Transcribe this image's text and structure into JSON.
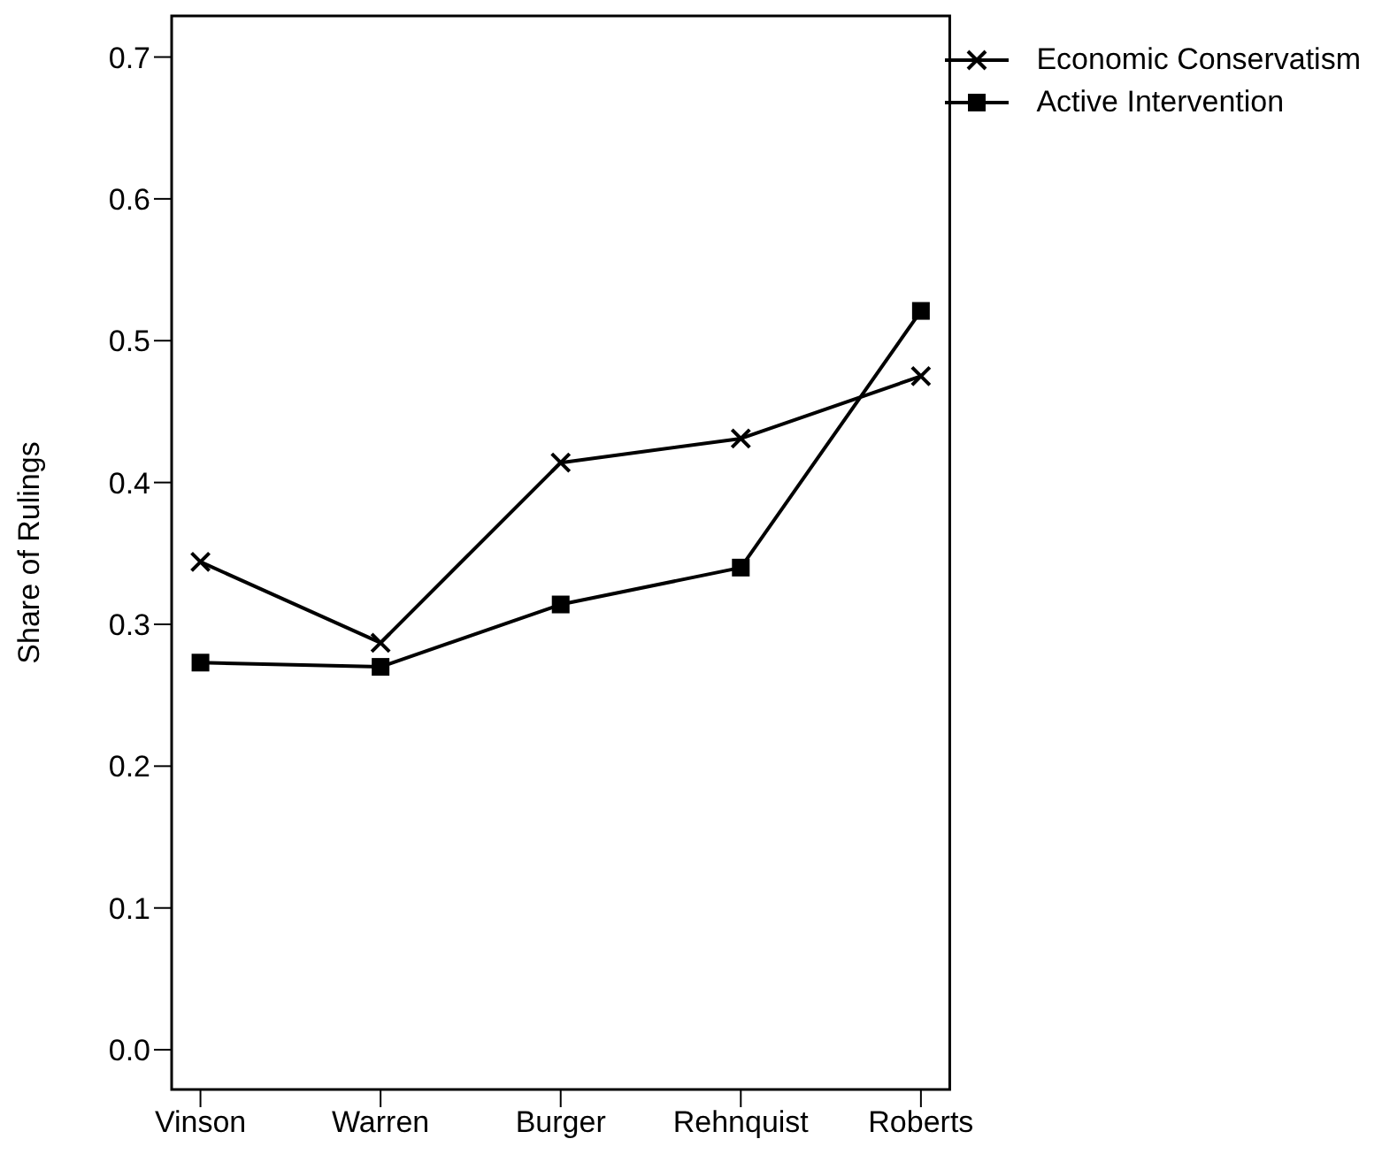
{
  "chart_data": {
    "type": "line",
    "ylabel": "Share of Rulings",
    "categories": [
      "Vinson",
      "Warren",
      "Burger",
      "Rehnquist",
      "Roberts"
    ],
    "series": [
      {
        "name": "Economic Conservatism",
        "color": "#000000",
        "marker": "cross",
        "values": [
          0.344,
          0.287,
          0.414,
          0.431,
          0.475
        ]
      },
      {
        "name": "Active Intervention",
        "color": "#000000",
        "marker": "square",
        "values": [
          0.273,
          0.27,
          0.314,
          0.34,
          0.521
        ]
      }
    ],
    "ylim": [
      -0.028,
      0.729
    ],
    "yticks": [
      {
        "value": 0,
        "label": "0.0"
      },
      0.1,
      0.2,
      0.3,
      0.4,
      0.5,
      0.6,
      0.7
    ],
    "legend": "top right",
    "grid": false
  }
}
